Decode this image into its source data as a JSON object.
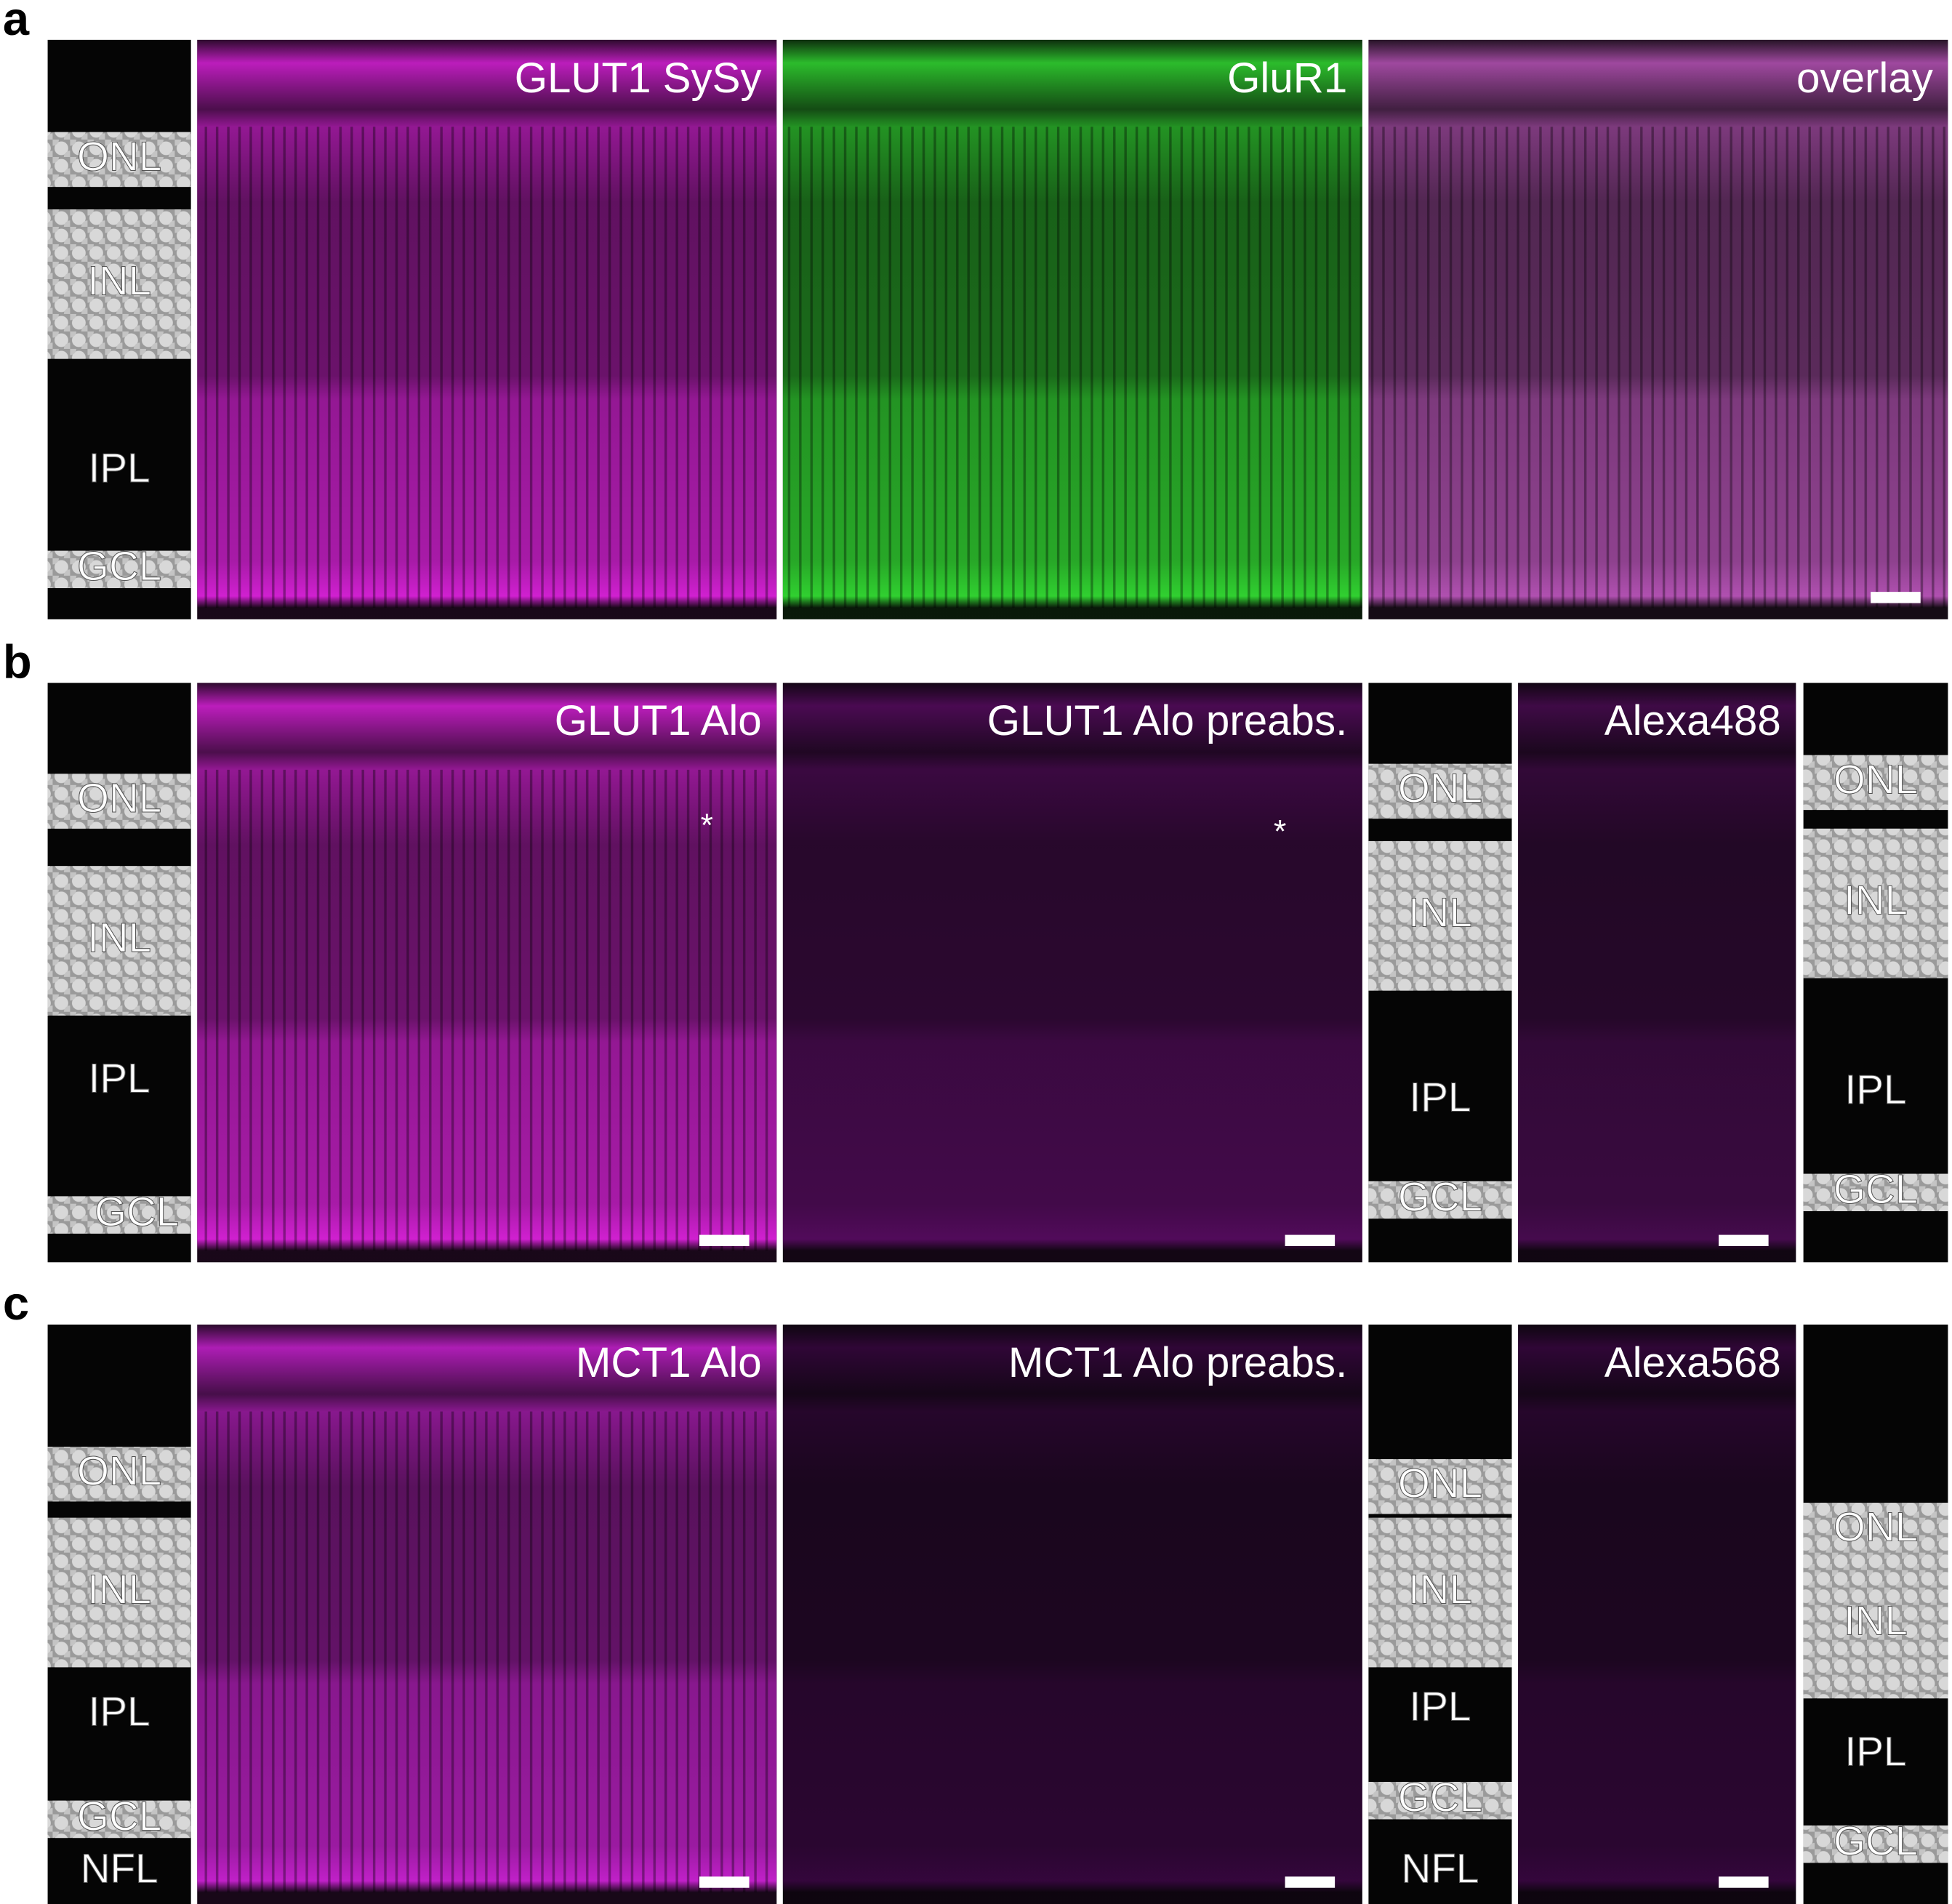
{
  "panels": [
    {
      "label": "a",
      "images": [
        {
          "layers": [
            "ONL",
            "INL",
            "IPL",
            "GCL"
          ]
        },
        {
          "title": "GLUT1 SySy",
          "color": "#d020d0"
        },
        {
          "title": "GluR1",
          "color": "#30d030"
        },
        {
          "title": "overlay",
          "color": "#b050b0"
        }
      ]
    },
    {
      "label": "b",
      "images": [
        {
          "layers": [
            "ONL",
            "INL",
            "IPL",
            "GCL"
          ]
        },
        {
          "title": "GLUT1 Alo",
          "color": "#d020d0",
          "marker": "*"
        },
        {
          "title": "GLUT1 Alo preabs.",
          "color": "#9010a0",
          "marker": "*"
        },
        {
          "layers": [
            "ONL",
            "INL",
            "IPL",
            "GCL"
          ]
        },
        {
          "title": "Alexa488",
          "color": "#7a1088"
        },
        {
          "layers": [
            "ONL",
            "INL",
            "IPL",
            "GCL"
          ]
        }
      ]
    },
    {
      "label": "c",
      "images": [
        {
          "layers": [
            "ONL",
            "INL",
            "IPL",
            "GCL",
            "NFL"
          ]
        },
        {
          "title": "MCT1 Alo",
          "color": "#c020c8"
        },
        {
          "title": "MCT1 Alo preabs.",
          "color": "#5a0868"
        },
        {
          "layers": [
            "ONL",
            "INL",
            "IPL",
            "GCL",
            "NFL"
          ]
        },
        {
          "title": "Alexa568",
          "color": "#5a0868"
        },
        {
          "layers": [
            "ONL",
            "INL",
            "IPL",
            "GCL"
          ]
        }
      ]
    }
  ]
}
